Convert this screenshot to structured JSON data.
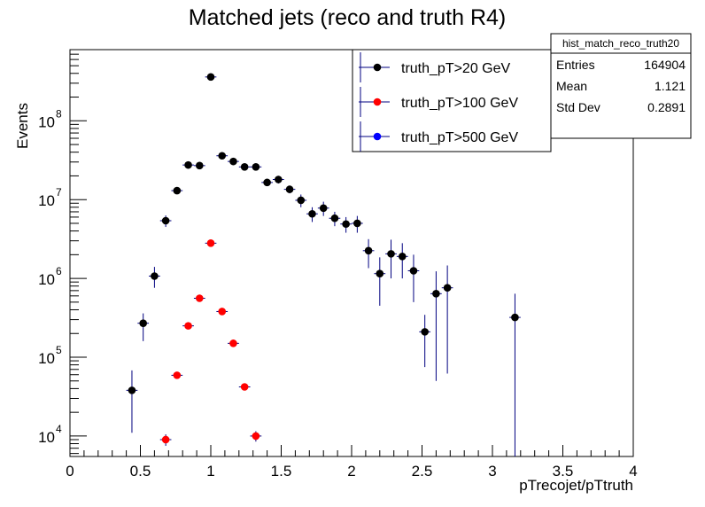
{
  "chart_data": {
    "type": "scatter",
    "title": "Matched jets (reco and truth R4)",
    "xlabel": "pTrecojet/pTtruth",
    "ylabel": "Events",
    "xlim": [
      0,
      4
    ],
    "ylim": [
      5500,
      800000000
    ],
    "log_y": true,
    "grid": false,
    "legend_position": "top-right",
    "x_ticks": [
      {
        "value": 0,
        "label": "0"
      },
      {
        "value": 0.5,
        "label": "0.5"
      },
      {
        "value": 1,
        "label": "1"
      },
      {
        "value": 1.5,
        "label": "1.5"
      },
      {
        "value": 2,
        "label": "2"
      },
      {
        "value": 2.5,
        "label": "2.5"
      },
      {
        "value": 3,
        "label": "3"
      },
      {
        "value": 3.5,
        "label": "3.5"
      },
      {
        "value": 4,
        "label": "4"
      }
    ],
    "y_ticks": [
      {
        "value": 10000,
        "base": "10",
        "exp": "4"
      },
      {
        "value": 100000,
        "base": "10",
        "exp": "5"
      },
      {
        "value": 1000000,
        "base": "10",
        "exp": "6"
      },
      {
        "value": 10000000,
        "base": "10",
        "exp": "7"
      },
      {
        "value": 100000000,
        "base": "10",
        "exp": "8"
      }
    ],
    "series": [
      {
        "name": "truth_pT>20 GeV",
        "color": "#000000",
        "error_color": "#000080",
        "points": [
          {
            "x": 0.44,
            "y": 38000,
            "lo": 11000,
            "hi": 68000
          },
          {
            "x": 0.52,
            "y": 270000,
            "lo": 160000,
            "hi": 360000
          },
          {
            "x": 0.6,
            "y": 1070000,
            "lo": 760000,
            "hi": 1400000
          },
          {
            "x": 0.68,
            "y": 5400000,
            "lo": 4500000,
            "hi": 6300000
          },
          {
            "x": 0.76,
            "y": 13000000,
            "lo": 11800000,
            "hi": 14200000
          },
          {
            "x": 0.84,
            "y": 27500000,
            "lo": 25500000,
            "hi": 29500000
          },
          {
            "x": 0.92,
            "y": 27000000,
            "lo": 25000000,
            "hi": 29000000
          },
          {
            "x": 1.0,
            "y": 360000000,
            "lo": 350000000,
            "hi": 370000000
          },
          {
            "x": 1.08,
            "y": 36000000,
            "lo": 34000000,
            "hi": 38000000
          },
          {
            "x": 1.16,
            "y": 30500000,
            "lo": 28500000,
            "hi": 32500000
          },
          {
            "x": 1.24,
            "y": 26000000,
            "lo": 24000000,
            "hi": 28000000
          },
          {
            "x": 1.32,
            "y": 26000000,
            "lo": 24000000,
            "hi": 28000000
          },
          {
            "x": 1.4,
            "y": 16500000,
            "lo": 15000000,
            "hi": 18000000
          },
          {
            "x": 1.48,
            "y": 18000000,
            "lo": 16000000,
            "hi": 20000000
          },
          {
            "x": 1.56,
            "y": 13500000,
            "lo": 12000000,
            "hi": 15000000
          },
          {
            "x": 1.64,
            "y": 9800000,
            "lo": 8000000,
            "hi": 11600000
          },
          {
            "x": 1.72,
            "y": 6600000,
            "lo": 5200000,
            "hi": 8000000
          },
          {
            "x": 1.8,
            "y": 7800000,
            "lo": 6200000,
            "hi": 9400000
          },
          {
            "x": 1.88,
            "y": 5800000,
            "lo": 4600000,
            "hi": 7000000
          },
          {
            "x": 1.96,
            "y": 4900000,
            "lo": 3800000,
            "hi": 6000000
          },
          {
            "x": 2.04,
            "y": 5000000,
            "lo": 3800000,
            "hi": 6200000
          },
          {
            "x": 2.12,
            "y": 2250000,
            "lo": 1350000,
            "hi": 3150000
          },
          {
            "x": 2.2,
            "y": 1150000,
            "lo": 450000,
            "hi": 1850000
          },
          {
            "x": 2.28,
            "y": 2050000,
            "lo": 1000000,
            "hi": 3100000
          },
          {
            "x": 2.36,
            "y": 1900000,
            "lo": 1000000,
            "hi": 2800000
          },
          {
            "x": 2.44,
            "y": 1250000,
            "lo": 500000,
            "hi": 2000000
          },
          {
            "x": 2.52,
            "y": 210000,
            "lo": 75000,
            "hi": 345000
          },
          {
            "x": 2.6,
            "y": 640000,
            "lo": 50000,
            "hi": 1230000
          },
          {
            "x": 2.68,
            "y": 760000,
            "lo": 62000,
            "hi": 1460000
          },
          {
            "x": 3.16,
            "y": 320000,
            "lo": 5500,
            "hi": 640000
          }
        ]
      },
      {
        "name": "truth_pT>100 GeV",
        "color": "#ff0000",
        "error_color": "#000080",
        "points": [
          {
            "x": 0.68,
            "y": 9000,
            "lo": 7500,
            "hi": 10500
          },
          {
            "x": 0.76,
            "y": 59000,
            "lo": 54000,
            "hi": 64000
          },
          {
            "x": 0.84,
            "y": 250000,
            "lo": 235000,
            "hi": 265000
          },
          {
            "x": 0.92,
            "y": 560000,
            "lo": 530000,
            "hi": 590000
          },
          {
            "x": 1.0,
            "y": 2800000,
            "lo": 2700000,
            "hi": 2900000
          },
          {
            "x": 1.08,
            "y": 380000,
            "lo": 355000,
            "hi": 405000
          },
          {
            "x": 1.16,
            "y": 150000,
            "lo": 140000,
            "hi": 160000
          },
          {
            "x": 1.24,
            "y": 42000,
            "lo": 38500,
            "hi": 45500
          },
          {
            "x": 1.32,
            "y": 10000,
            "lo": 8500,
            "hi": 11500
          }
        ]
      },
      {
        "name": "truth_pT>500 GeV",
        "color": "#0000ff",
        "error_color": "#000080",
        "points": []
      }
    ],
    "stats_box": {
      "title": "hist_match_reco_truth20",
      "rows": [
        {
          "label": "Entries",
          "value": "164904"
        },
        {
          "label": "Mean",
          "value": "1.121"
        },
        {
          "label": "Std Dev",
          "value": "0.2891"
        }
      ]
    }
  }
}
